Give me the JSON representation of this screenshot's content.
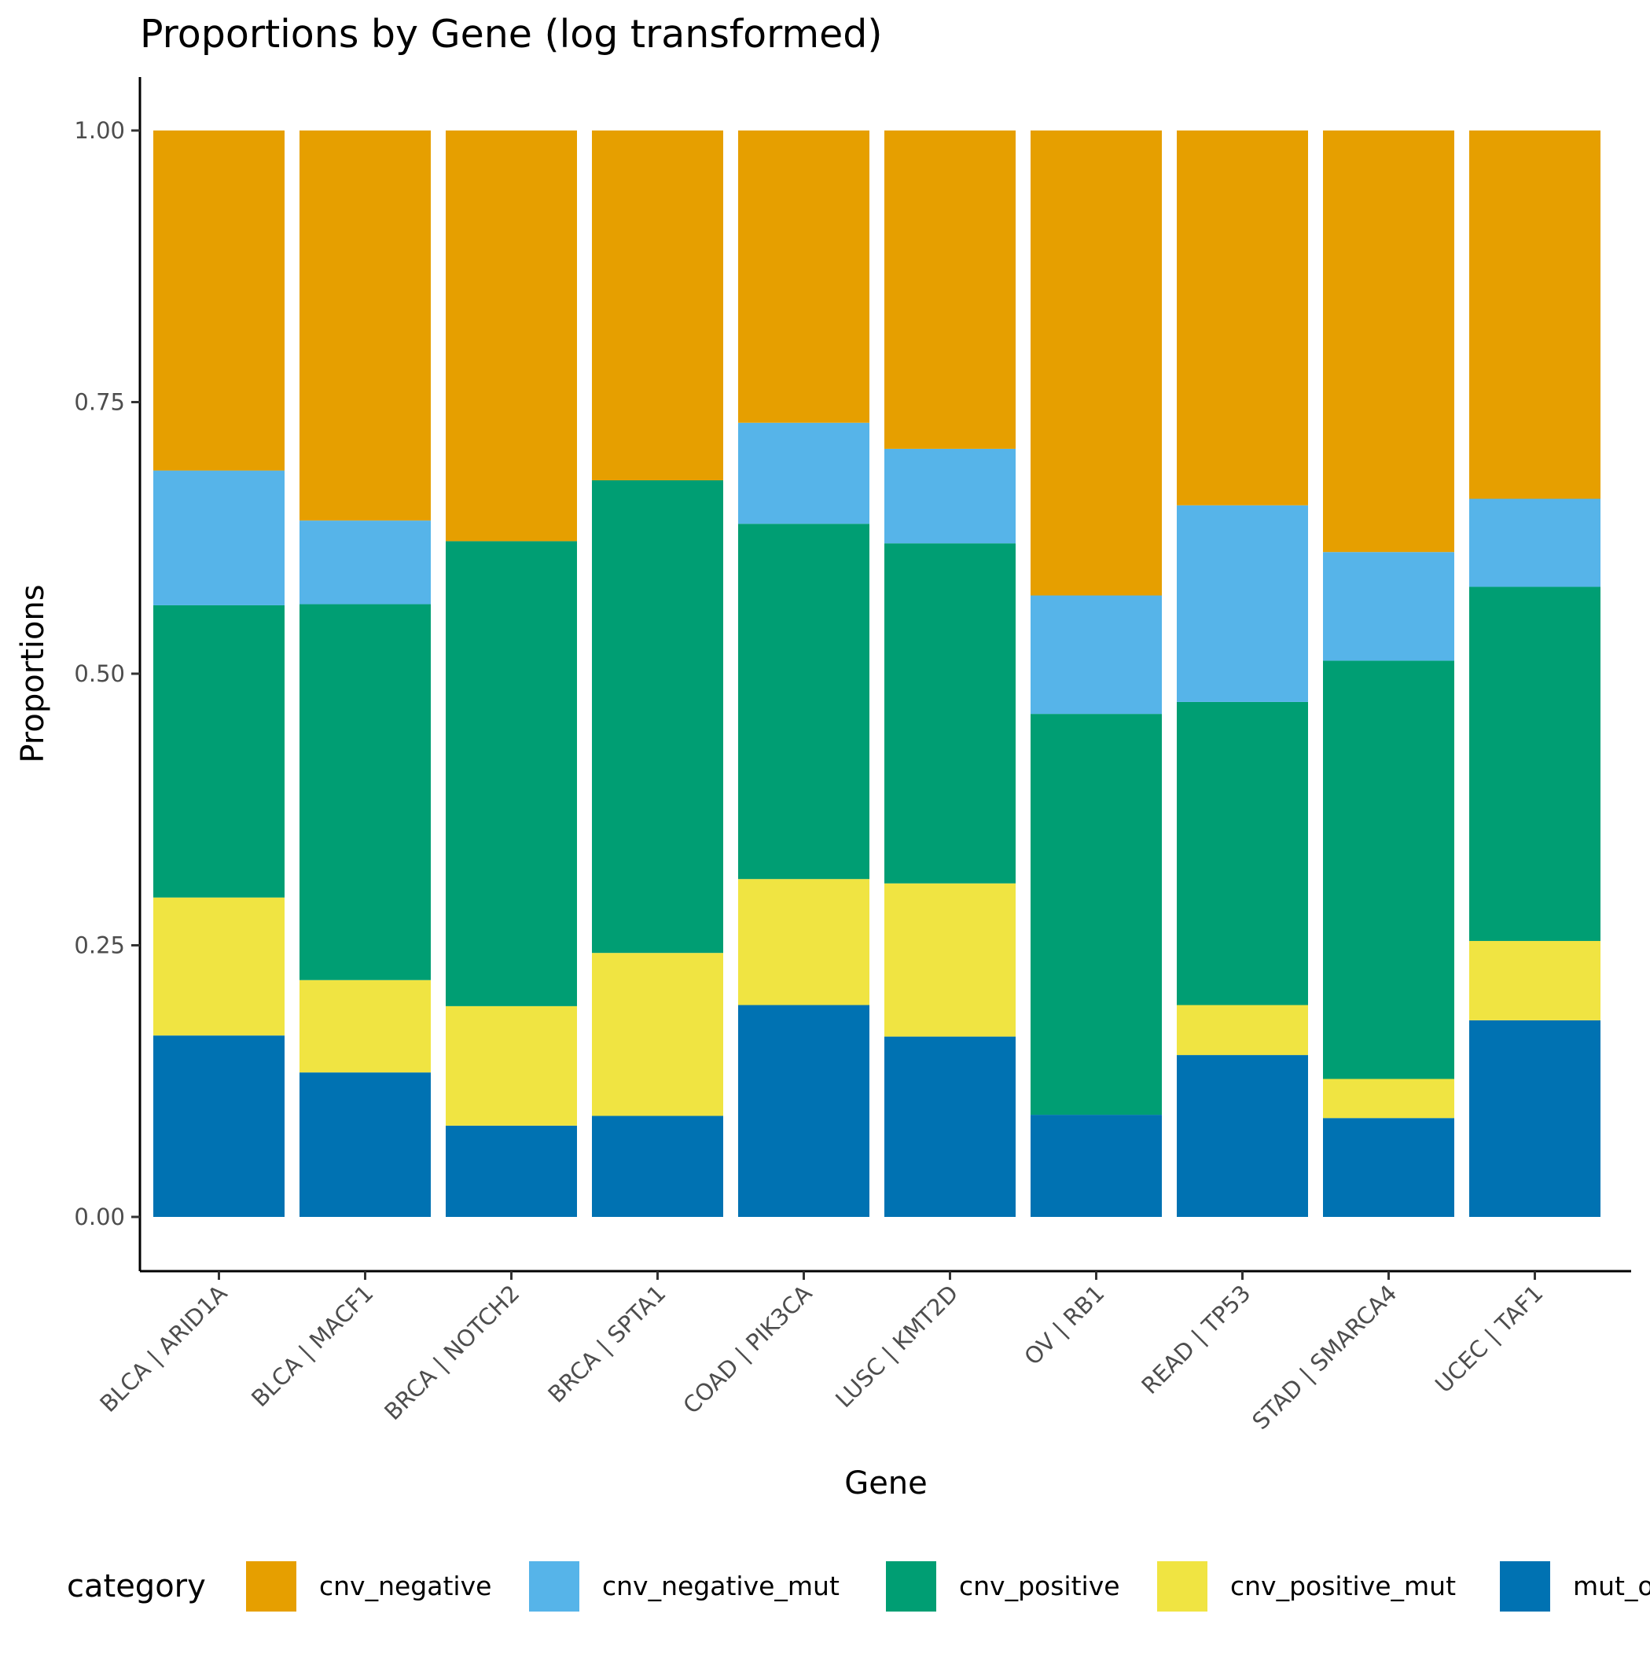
{
  "chart_data": {
    "type": "bar",
    "stacked": true,
    "title": "Proportions by Gene (log transformed)",
    "xlabel": "Gene",
    "ylabel": "Proportions",
    "ylim": [
      0,
      1
    ],
    "yticks": [
      "0.00",
      "0.25",
      "0.50",
      "0.75",
      "1.00"
    ],
    "grid": false,
    "legend": {
      "title": "category",
      "position": "bottom",
      "visible_labels": [
        "cnv_negative",
        "cnv_negative_mut",
        "cnv_positive",
        "cnv_positive_mut",
        "mut_o"
      ]
    },
    "categories": [
      "BLCA | ARID1A",
      "BLCA | MACF1",
      "BRCA | NOTCH2",
      "BRCA | SPTA1",
      "COAD | PIK3CA",
      "LUSC | KMT2D",
      "OV | RB1",
      "READ | TP53",
      "STAD | SMARCA4",
      "UCEC | TAF1"
    ],
    "series": [
      {
        "name": "cnv_negative",
        "color": "#E69F00",
        "values": [
          0.313,
          0.359,
          0.378,
          0.322,
          0.269,
          0.293,
          0.428,
          0.345,
          0.388,
          0.339
        ]
      },
      {
        "name": "cnv_negative_mut",
        "color": "#56B4E9",
        "values": [
          0.124,
          0.077,
          0.0,
          0.0,
          0.093,
          0.087,
          0.109,
          0.181,
          0.1,
          0.081
        ]
      },
      {
        "name": "cnv_positive",
        "color": "#009E73",
        "values": [
          0.269,
          0.346,
          0.428,
          0.435,
          0.327,
          0.313,
          0.369,
          0.279,
          0.385,
          0.326
        ]
      },
      {
        "name": "cnv_positive_mut",
        "color": "#F0E442",
        "values": [
          0.127,
          0.085,
          0.11,
          0.15,
          0.116,
          0.141,
          0.0,
          0.046,
          0.036,
          0.073
        ]
      },
      {
        "name": "mut_only",
        "color": "#0072B2",
        "values": [
          0.167,
          0.133,
          0.084,
          0.093,
          0.195,
          0.166,
          0.094,
          0.149,
          0.091,
          0.181
        ]
      }
    ]
  }
}
